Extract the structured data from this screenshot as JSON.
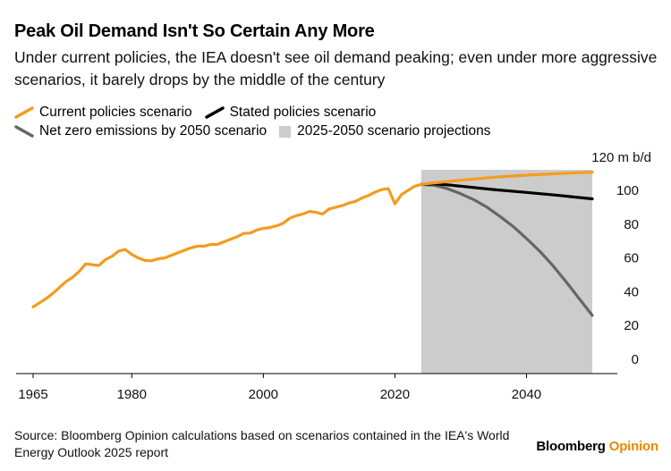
{
  "header": {
    "title": "Peak Oil Demand Isn't So Certain Any More",
    "subtitle": "Under current policies, the IEA doesn't see oil demand peaking; even under more aggressive scenarios, it barely drops by the middle of the century"
  },
  "legend": [
    {
      "label": "Current policies scenario",
      "color": "#f39c1f",
      "kind": "line"
    },
    {
      "label": "Stated policies scenario",
      "color": "#000000",
      "kind": "line"
    },
    {
      "label": "Net zero emissions by 2050 scenario",
      "color": "#666666",
      "kind": "line"
    },
    {
      "label": "2025-2050 scenario projections",
      "color": "#cccccc",
      "kind": "box"
    }
  ],
  "footer": {
    "source": "Source: Bloomberg Opinion calculations based on scenarios contained in the IEA's World Energy Outlook 2025 report",
    "brand_main": "Bloomberg",
    "brand_accent": "Opinion"
  },
  "chart_data": {
    "type": "line",
    "unit_label": "120 m b/d",
    "xlim": [
      1964,
      2052
    ],
    "ylim": [
      0,
      120
    ],
    "x_ticks": [
      1965,
      1980,
      2000,
      2020,
      2040
    ],
    "y_ticks": [
      0,
      20,
      40,
      60,
      80,
      100
    ],
    "shaded_region": {
      "x_start": 2024,
      "x_end": 2050,
      "label": "2025-2050 scenario projections",
      "color": "#cccccc"
    },
    "series": [
      {
        "name": "Current policies scenario",
        "color": "#f39c1f",
        "points": [
          [
            1965,
            31
          ],
          [
            1966,
            33.5
          ],
          [
            1967,
            36
          ],
          [
            1968,
            39
          ],
          [
            1969,
            42.5
          ],
          [
            1970,
            46
          ],
          [
            1971,
            48.5
          ],
          [
            1972,
            52
          ],
          [
            1973,
            56.5
          ],
          [
            1974,
            56
          ],
          [
            1975,
            55.5
          ],
          [
            1976,
            59
          ],
          [
            1977,
            61
          ],
          [
            1978,
            64
          ],
          [
            1979,
            65
          ],
          [
            1980,
            62
          ],
          [
            1981,
            60
          ],
          [
            1982,
            58.5
          ],
          [
            1983,
            58.3
          ],
          [
            1984,
            59.5
          ],
          [
            1985,
            60
          ],
          [
            1986,
            61.5
          ],
          [
            1987,
            63
          ],
          [
            1988,
            64.5
          ],
          [
            1989,
            66
          ],
          [
            1990,
            67
          ],
          [
            1991,
            67
          ],
          [
            1992,
            68
          ],
          [
            1993,
            68
          ],
          [
            1994,
            69.5
          ],
          [
            1995,
            71
          ],
          [
            1996,
            72.5
          ],
          [
            1997,
            74.5
          ],
          [
            1998,
            74.7
          ],
          [
            1999,
            76.5
          ],
          [
            2000,
            77.5
          ],
          [
            2001,
            78
          ],
          [
            2002,
            79
          ],
          [
            2003,
            80.5
          ],
          [
            2004,
            83.5
          ],
          [
            2005,
            85
          ],
          [
            2006,
            86
          ],
          [
            2007,
            87.5
          ],
          [
            2008,
            87
          ],
          [
            2009,
            86
          ],
          [
            2010,
            89
          ],
          [
            2011,
            90
          ],
          [
            2012,
            91
          ],
          [
            2013,
            92.5
          ],
          [
            2014,
            93.5
          ],
          [
            2015,
            95.5
          ],
          [
            2016,
            97
          ],
          [
            2017,
            99
          ],
          [
            2018,
            100.5
          ],
          [
            2019,
            101
          ],
          [
            2020,
            92
          ],
          [
            2021,
            97.5
          ],
          [
            2022,
            100
          ],
          [
            2023,
            102.5
          ],
          [
            2024,
            103.5
          ],
          [
            2025,
            104
          ],
          [
            2030,
            106
          ],
          [
            2035,
            107.8
          ],
          [
            2040,
            109
          ],
          [
            2045,
            110
          ],
          [
            2050,
            110.8
          ]
        ]
      },
      {
        "name": "Stated policies scenario",
        "color": "#000000",
        "points": [
          [
            2024,
            103.5
          ],
          [
            2026,
            103.8
          ],
          [
            2028,
            103.3
          ],
          [
            2030,
            102.5
          ],
          [
            2035,
            100.5
          ],
          [
            2040,
            98.8
          ],
          [
            2045,
            97
          ],
          [
            2050,
            95
          ]
        ]
      },
      {
        "name": "Net zero emissions by 2050 scenario",
        "color": "#666666",
        "points": [
          [
            2024,
            103.5
          ],
          [
            2026,
            103
          ],
          [
            2028,
            101
          ],
          [
            2030,
            98
          ],
          [
            2032,
            94.5
          ],
          [
            2034,
            90
          ],
          [
            2036,
            84.5
          ],
          [
            2038,
            78.5
          ],
          [
            2040,
            71.5
          ],
          [
            2042,
            64
          ],
          [
            2044,
            55.5
          ],
          [
            2046,
            46
          ],
          [
            2048,
            36
          ],
          [
            2050,
            26
          ]
        ]
      }
    ]
  }
}
